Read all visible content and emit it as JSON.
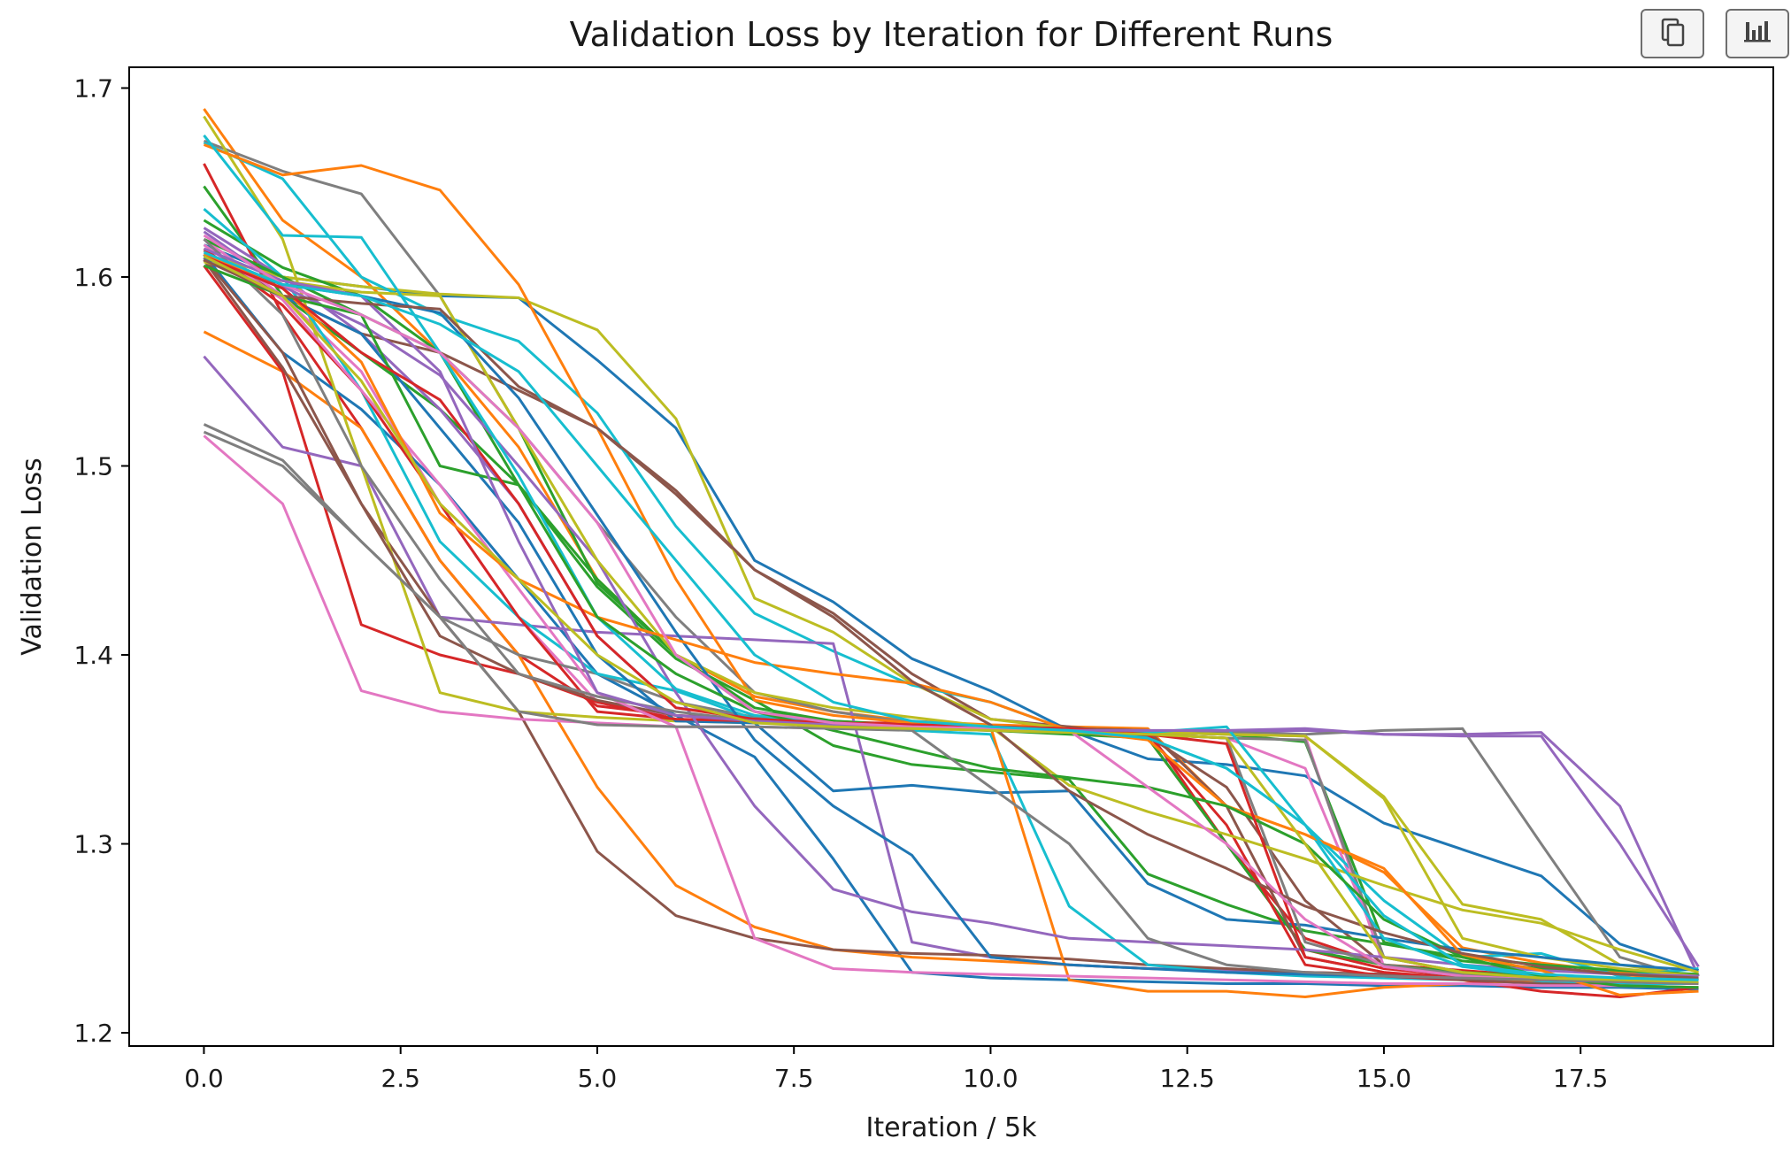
{
  "toolbar": {
    "copy_icon": "copy-icon",
    "chart_icon": "bar-chart-icon"
  },
  "chart_data": {
    "type": "line",
    "title": "Validation Loss by Iteration for Different Runs",
    "xlabel": "Iteration / 5k",
    "ylabel": "Validation Loss",
    "xlim": [
      -0.95,
      19.95
    ],
    "ylim": [
      1.193,
      1.711
    ],
    "xticks": [
      0.0,
      2.5,
      5.0,
      7.5,
      10.0,
      12.5,
      15.0,
      17.5
    ],
    "xtick_labels": [
      "0.0",
      "2.5",
      "5.0",
      "7.5",
      "10.0",
      "12.5",
      "15.0",
      "17.5"
    ],
    "yticks": [
      1.2,
      1.3,
      1.4,
      1.5,
      1.6,
      1.7
    ],
    "ytick_labels": [
      "1.2",
      "1.3",
      "1.4",
      "1.5",
      "1.6",
      "1.7"
    ],
    "grid": false,
    "legend": "none",
    "x": [
      0,
      1,
      2,
      3,
      4,
      5,
      6,
      7,
      8,
      9,
      10,
      11,
      12,
      13,
      14,
      15,
      16,
      17,
      18,
      19
    ],
    "series": [
      {
        "color": "#1f77b4",
        "values": [
          1.617,
          1.6,
          1.595,
          1.59,
          1.589,
          1.556,
          1.52,
          1.45,
          1.428,
          1.398,
          1.381,
          1.36,
          1.345,
          1.342,
          1.336,
          1.311,
          1.297,
          1.283,
          1.247,
          1.233
        ]
      },
      {
        "color": "#ff7f0e",
        "values": [
          1.689,
          1.63,
          1.6,
          1.56,
          1.51,
          1.44,
          1.4,
          1.378,
          1.37,
          1.365,
          1.363,
          1.362,
          1.361,
          1.32,
          1.305,
          1.285,
          1.245,
          1.237,
          1.232,
          1.23
        ]
      },
      {
        "color": "#2ca02c",
        "values": [
          1.648,
          1.59,
          1.56,
          1.53,
          1.49,
          1.44,
          1.4,
          1.372,
          1.365,
          1.363,
          1.361,
          1.36,
          1.359,
          1.358,
          1.354,
          1.248,
          1.238,
          1.234,
          1.231,
          1.229
        ]
      },
      {
        "color": "#d62728",
        "values": [
          1.66,
          1.58,
          1.52,
          1.45,
          1.4,
          1.373,
          1.368,
          1.365,
          1.364,
          1.364,
          1.362,
          1.361,
          1.356,
          1.3,
          1.25,
          1.236,
          1.233,
          1.23,
          1.228,
          1.227
        ]
      },
      {
        "color": "#9467bd",
        "values": [
          1.626,
          1.6,
          1.57,
          1.53,
          1.48,
          1.41,
          1.372,
          1.367,
          1.364,
          1.362,
          1.361,
          1.36,
          1.359,
          1.359,
          1.36,
          1.358,
          1.358,
          1.359,
          1.32,
          1.23
        ]
      },
      {
        "color": "#8c564b",
        "values": [
          1.614,
          1.59,
          1.57,
          1.56,
          1.54,
          1.52,
          1.485,
          1.445,
          1.422,
          1.39,
          1.366,
          1.362,
          1.357,
          1.33,
          1.27,
          1.236,
          1.231,
          1.229,
          1.228,
          1.227
        ]
      },
      {
        "color": "#e377c2",
        "values": [
          1.62,
          1.59,
          1.55,
          1.48,
          1.42,
          1.375,
          1.368,
          1.366,
          1.364,
          1.363,
          1.362,
          1.361,
          1.358,
          1.356,
          1.34,
          1.24,
          1.232,
          1.229,
          1.228,
          1.226
        ]
      },
      {
        "color": "#7f7f7f",
        "values": [
          1.672,
          1.656,
          1.644,
          1.59,
          1.52,
          1.47,
          1.42,
          1.38,
          1.37,
          1.364,
          1.362,
          1.361,
          1.36,
          1.359,
          1.358,
          1.36,
          1.361,
          1.3,
          1.24,
          1.228
        ]
      },
      {
        "color": "#bcbd22",
        "values": [
          1.612,
          1.6,
          1.595,
          1.591,
          1.589,
          1.572,
          1.525,
          1.43,
          1.412,
          1.385,
          1.366,
          1.361,
          1.359,
          1.358,
          1.357,
          1.325,
          1.268,
          1.26,
          1.236,
          1.23
        ]
      },
      {
        "color": "#17becf",
        "values": [
          1.671,
          1.652,
          1.6,
          1.58,
          1.566,
          1.528,
          1.468,
          1.422,
          1.402,
          1.384,
          1.375,
          1.36,
          1.356,
          1.34,
          1.31,
          1.27,
          1.24,
          1.242,
          1.23,
          1.234
        ]
      },
      {
        "color": "#1f77b4",
        "values": [
          1.612,
          1.56,
          1.53,
          1.49,
          1.44,
          1.39,
          1.368,
          1.346,
          1.292,
          1.232,
          1.229,
          1.228,
          1.227,
          1.226,
          1.226,
          1.225,
          1.225,
          1.224,
          1.224,
          1.223
        ]
      },
      {
        "color": "#ff7f0e",
        "values": [
          1.571,
          1.55,
          1.52,
          1.45,
          1.4,
          1.33,
          1.278,
          1.256,
          1.244,
          1.24,
          1.238,
          1.236,
          1.234,
          1.233,
          1.232,
          1.231,
          1.23,
          1.23,
          1.229,
          1.228
        ]
      },
      {
        "color": "#2ca02c",
        "values": [
          1.63,
          1.605,
          1.59,
          1.56,
          1.49,
          1.436,
          1.398,
          1.376,
          1.352,
          1.342,
          1.338,
          1.334,
          1.284,
          1.268,
          1.254,
          1.247,
          1.24,
          1.236,
          1.233,
          1.231
        ]
      },
      {
        "color": "#d62728",
        "values": [
          1.606,
          1.55,
          1.416,
          1.4,
          1.39,
          1.375,
          1.366,
          1.364,
          1.363,
          1.362,
          1.362,
          1.361,
          1.36,
          1.3,
          1.244,
          1.234,
          1.23,
          1.228,
          1.227,
          1.226
        ]
      },
      {
        "color": "#9467bd",
        "values": [
          1.558,
          1.51,
          1.5,
          1.42,
          1.416,
          1.412,
          1.41,
          1.408,
          1.406,
          1.248,
          1.24,
          1.236,
          1.234,
          1.233,
          1.232,
          1.231,
          1.23,
          1.229,
          1.228,
          1.228
        ]
      },
      {
        "color": "#8c564b",
        "values": [
          1.61,
          1.56,
          1.48,
          1.42,
          1.37,
          1.296,
          1.262,
          1.25,
          1.244,
          1.242,
          1.241,
          1.239,
          1.236,
          1.234,
          1.232,
          1.231,
          1.23,
          1.229,
          1.228,
          1.228
        ]
      },
      {
        "color": "#e377c2",
        "values": [
          1.516,
          1.48,
          1.381,
          1.37,
          1.366,
          1.364,
          1.362,
          1.362,
          1.361,
          1.361,
          1.36,
          1.36,
          1.359,
          1.358,
          1.357,
          1.235,
          1.23,
          1.228,
          1.227,
          1.226
        ]
      },
      {
        "color": "#7f7f7f",
        "values": [
          1.522,
          1.503,
          1.46,
          1.42,
          1.4,
          1.39,
          1.375,
          1.367,
          1.364,
          1.362,
          1.36,
          1.359,
          1.358,
          1.356,
          1.355,
          1.24,
          1.232,
          1.229,
          1.228,
          1.227
        ]
      },
      {
        "color": "#bcbd22",
        "values": [
          1.685,
          1.62,
          1.5,
          1.38,
          1.37,
          1.367,
          1.365,
          1.364,
          1.363,
          1.362,
          1.361,
          1.36,
          1.359,
          1.358,
          1.357,
          1.324,
          1.25,
          1.24,
          1.234,
          1.23
        ]
      },
      {
        "color": "#17becf",
        "values": [
          1.636,
          1.6,
          1.54,
          1.46,
          1.42,
          1.39,
          1.381,
          1.366,
          1.362,
          1.36,
          1.358,
          1.267,
          1.236,
          1.232,
          1.23,
          1.229,
          1.228,
          1.227,
          1.226,
          1.226
        ]
      },
      {
        "color": "#1f77b4",
        "values": [
          1.611,
          1.59,
          1.57,
          1.52,
          1.47,
          1.4,
          1.365,
          1.364,
          1.328,
          1.331,
          1.327,
          1.328,
          1.279,
          1.26,
          1.257,
          1.25,
          1.244,
          1.24,
          1.236,
          1.233
        ]
      },
      {
        "color": "#ff7f0e",
        "values": [
          1.67,
          1.654,
          1.659,
          1.646,
          1.596,
          1.52,
          1.44,
          1.376,
          1.368,
          1.364,
          1.362,
          1.228,
          1.222,
          1.222,
          1.219,
          1.224,
          1.226,
          1.228,
          1.229,
          1.23
        ]
      },
      {
        "color": "#2ca02c",
        "values": [
          1.62,
          1.6,
          1.58,
          1.56,
          1.52,
          1.438,
          1.4,
          1.37,
          1.365,
          1.362,
          1.36,
          1.358,
          1.356,
          1.3,
          1.244,
          1.236,
          1.232,
          1.23,
          1.229,
          1.228
        ]
      },
      {
        "color": "#d62728",
        "values": [
          1.615,
          1.585,
          1.54,
          1.48,
          1.42,
          1.37,
          1.366,
          1.365,
          1.364,
          1.363,
          1.362,
          1.36,
          1.358,
          1.31,
          1.236,
          1.23,
          1.228,
          1.222,
          1.219,
          1.224
        ]
      },
      {
        "color": "#9467bd",
        "values": [
          1.624,
          1.595,
          1.575,
          1.548,
          1.5,
          1.45,
          1.38,
          1.32,
          1.276,
          1.264,
          1.258,
          1.25,
          1.248,
          1.246,
          1.244,
          1.24,
          1.236,
          1.233,
          1.231,
          1.23
        ]
      },
      {
        "color": "#8c564b",
        "values": [
          1.609,
          1.552,
          1.48,
          1.41,
          1.39,
          1.376,
          1.368,
          1.366,
          1.364,
          1.363,
          1.362,
          1.361,
          1.36,
          1.32,
          1.24,
          1.232,
          1.228,
          1.226,
          1.225,
          1.224
        ]
      },
      {
        "color": "#e377c2",
        "values": [
          1.617,
          1.588,
          1.54,
          1.49,
          1.435,
          1.38,
          1.362,
          1.25,
          1.234,
          1.232,
          1.231,
          1.23,
          1.229,
          1.228,
          1.227,
          1.226,
          1.226,
          1.225,
          1.225,
          1.224
        ]
      },
      {
        "color": "#7f7f7f",
        "values": [
          1.62,
          1.58,
          1.5,
          1.44,
          1.39,
          1.378,
          1.37,
          1.365,
          1.363,
          1.361,
          1.36,
          1.359,
          1.358,
          1.356,
          1.248,
          1.236,
          1.231,
          1.229,
          1.228,
          1.227
        ]
      },
      {
        "color": "#bcbd22",
        "values": [
          1.608,
          1.598,
          1.592,
          1.59,
          1.52,
          1.45,
          1.4,
          1.38,
          1.372,
          1.367,
          1.362,
          1.331,
          1.317,
          1.305,
          1.292,
          1.278,
          1.265,
          1.258,
          1.244,
          1.232
        ]
      },
      {
        "color": "#17becf",
        "values": [
          1.675,
          1.622,
          1.621,
          1.56,
          1.495,
          1.42,
          1.382,
          1.368,
          1.364,
          1.362,
          1.361,
          1.36,
          1.359,
          1.362,
          1.31,
          1.25,
          1.235,
          1.23,
          1.228,
          1.227
        ]
      },
      {
        "color": "#1f77b4",
        "values": [
          1.61,
          1.596,
          1.59,
          1.581,
          1.536,
          1.474,
          1.412,
          1.355,
          1.32,
          1.294,
          1.24,
          1.236,
          1.234,
          1.232,
          1.231,
          1.23,
          1.229,
          1.228,
          1.227,
          1.226
        ]
      },
      {
        "color": "#ff7f0e",
        "values": [
          1.612,
          1.594,
          1.555,
          1.475,
          1.44,
          1.42,
          1.408,
          1.396,
          1.39,
          1.385,
          1.375,
          1.36,
          1.355,
          1.32,
          1.305,
          1.287,
          1.241,
          1.233,
          1.22,
          1.222
        ]
      },
      {
        "color": "#2ca02c",
        "values": [
          1.606,
          1.59,
          1.58,
          1.5,
          1.49,
          1.42,
          1.39,
          1.37,
          1.36,
          1.35,
          1.34,
          1.335,
          1.33,
          1.32,
          1.3,
          1.26,
          1.24,
          1.23,
          1.225,
          1.224
        ]
      },
      {
        "color": "#d62728",
        "values": [
          1.611,
          1.594,
          1.56,
          1.535,
          1.48,
          1.41,
          1.372,
          1.366,
          1.364,
          1.363,
          1.362,
          1.361,
          1.358,
          1.353,
          1.24,
          1.232,
          1.229,
          1.228,
          1.227,
          1.226
        ]
      },
      {
        "color": "#9467bd",
        "values": [
          1.615,
          1.598,
          1.59,
          1.55,
          1.46,
          1.38,
          1.368,
          1.365,
          1.363,
          1.362,
          1.361,
          1.36,
          1.36,
          1.36,
          1.361,
          1.358,
          1.357,
          1.357,
          1.3,
          1.235
        ]
      },
      {
        "color": "#8c564b",
        "values": [
          1.609,
          1.59,
          1.586,
          1.583,
          1.542,
          1.52,
          1.487,
          1.445,
          1.42,
          1.386,
          1.363,
          1.328,
          1.305,
          1.287,
          1.267,
          1.253,
          1.242,
          1.235,
          1.231,
          1.229
        ]
      },
      {
        "color": "#e377c2",
        "values": [
          1.622,
          1.596,
          1.58,
          1.56,
          1.52,
          1.47,
          1.4,
          1.37,
          1.364,
          1.362,
          1.361,
          1.36,
          1.33,
          1.3,
          1.26,
          1.235,
          1.23,
          1.228,
          1.227,
          1.226
        ]
      },
      {
        "color": "#7f7f7f",
        "values": [
          1.518,
          1.5,
          1.46,
          1.42,
          1.37,
          1.363,
          1.362,
          1.362,
          1.361,
          1.36,
          1.33,
          1.3,
          1.25,
          1.236,
          1.232,
          1.23,
          1.229,
          1.228,
          1.227,
          1.226
        ]
      },
      {
        "color": "#bcbd22",
        "values": [
          1.611,
          1.59,
          1.545,
          1.48,
          1.44,
          1.4,
          1.375,
          1.364,
          1.362,
          1.361,
          1.36,
          1.359,
          1.358,
          1.356,
          1.3,
          1.24,
          1.232,
          1.229,
          1.228,
          1.227
        ]
      },
      {
        "color": "#17becf",
        "values": [
          1.613,
          1.596,
          1.59,
          1.575,
          1.55,
          1.5,
          1.45,
          1.4,
          1.375,
          1.365,
          1.362,
          1.36,
          1.356,
          1.34,
          1.31,
          1.262,
          1.236,
          1.231,
          1.229,
          1.228
        ]
      }
    ]
  }
}
